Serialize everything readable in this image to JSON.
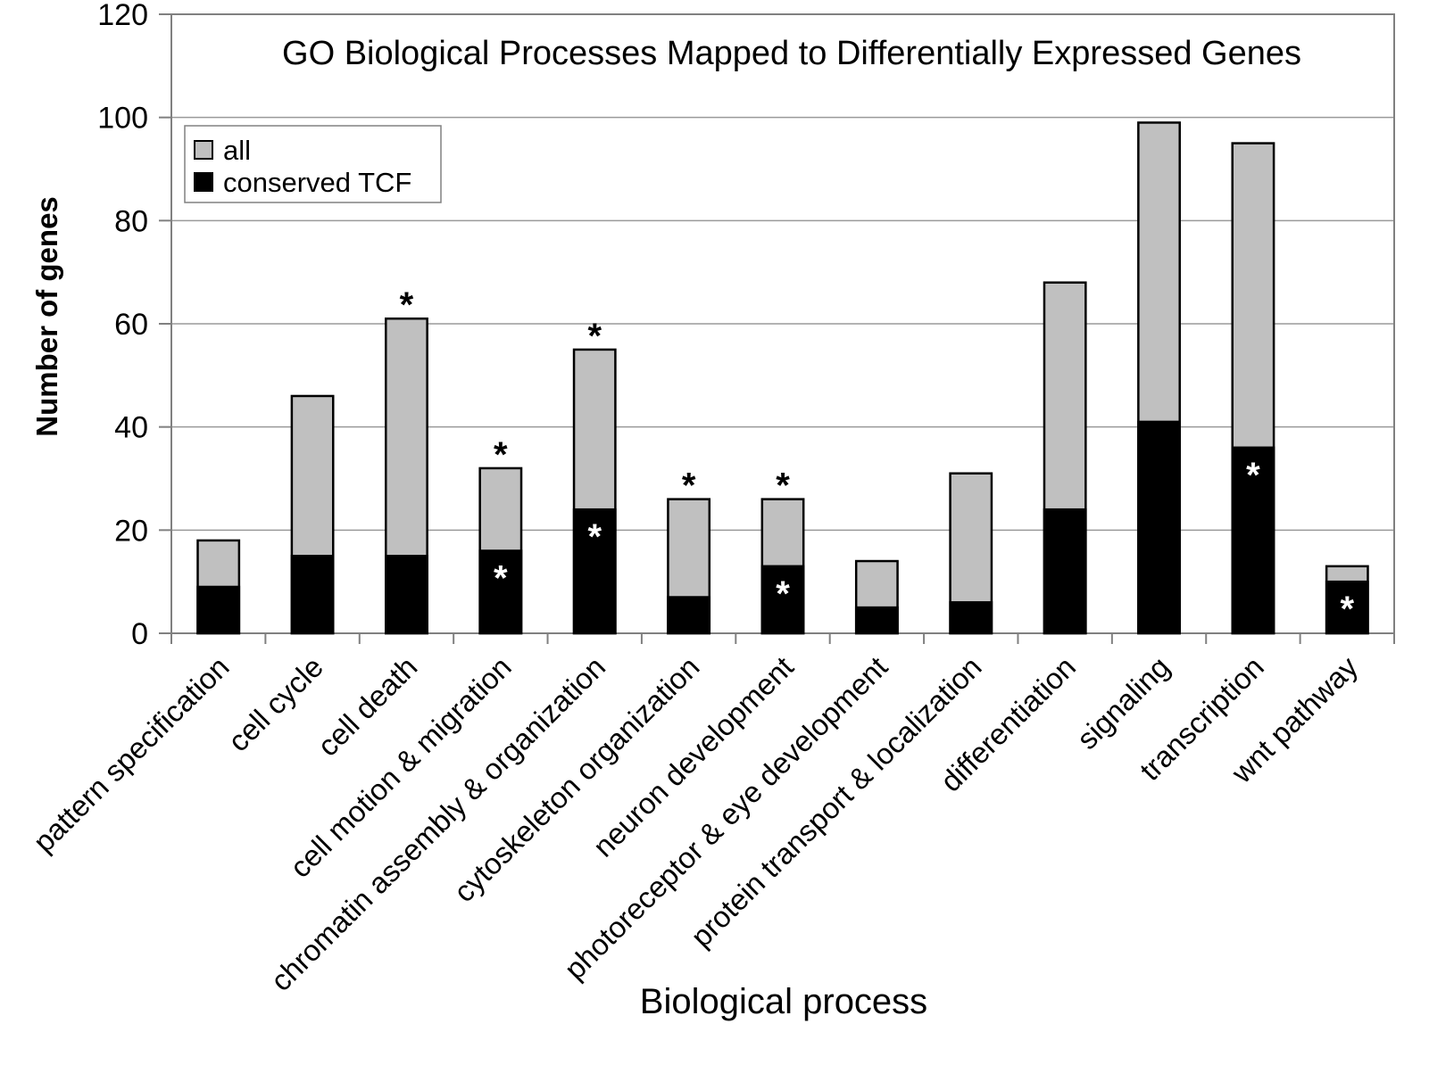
{
  "chart_data": {
    "type": "bar",
    "stacked": "overlay",
    "title": "GO Biological Processes Mapped to Differentially Expressed Genes",
    "xlabel": "Biological process",
    "ylabel": "Number of genes",
    "ylim": [
      0,
      120
    ],
    "yticks": [
      0,
      20,
      40,
      60,
      80,
      100,
      120
    ],
    "grid": true,
    "legend": {
      "placement": "top-left",
      "entries": [
        "all",
        "conserved TCF"
      ]
    },
    "categories": [
      "pattern specification",
      "cell cycle",
      "cell death",
      "cell motion & migration",
      "chromatin assembly & organization",
      "cytoskeleton organization",
      "neuron development",
      "photoreceptor & eye development",
      "protein transport & localization",
      "differentiation",
      "signaling",
      "transcription",
      "wnt pathway"
    ],
    "series": [
      {
        "name": "all",
        "color": "#c0c0c0",
        "values": [
          18,
          46,
          61,
          32,
          55,
          26,
          26,
          14,
          31,
          68,
          99,
          95,
          13
        ]
      },
      {
        "name": "conserved TCF",
        "color": "#000000",
        "values": [
          9,
          15,
          15,
          16,
          24,
          7,
          13,
          5,
          6,
          24,
          41,
          36,
          10
        ]
      }
    ],
    "annotations": {
      "marker": "*",
      "all_significant": [
        false,
        false,
        true,
        true,
        true,
        true,
        true,
        false,
        false,
        false,
        false,
        false,
        false
      ],
      "tcf_significant": [
        false,
        false,
        false,
        true,
        true,
        false,
        true,
        false,
        false,
        false,
        false,
        true,
        true
      ]
    }
  }
}
